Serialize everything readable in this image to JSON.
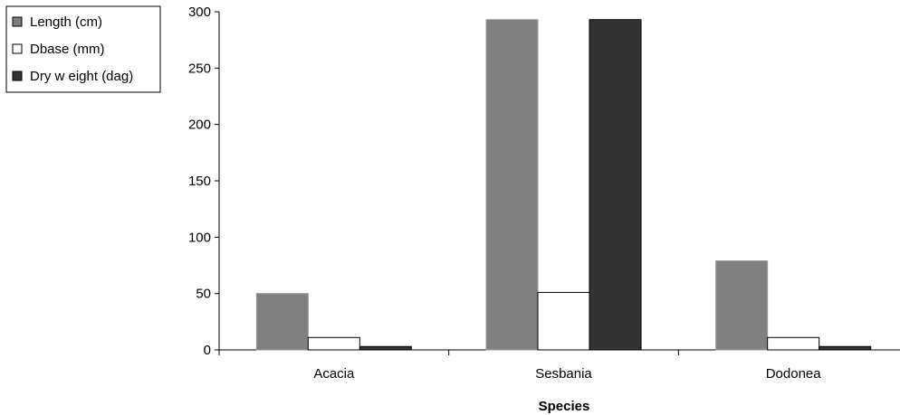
{
  "chart_data": {
    "type": "bar",
    "title": "",
    "xlabel": "Species",
    "ylabel": "",
    "categories": [
      "Acacia",
      "Sesbania",
      "Dodonea"
    ],
    "series": [
      {
        "name": "Length (cm)",
        "color": "#808080",
        "values": [
          50,
          293,
          79
        ]
      },
      {
        "name": "Dbase (mm)",
        "color": "#ffffff",
        "values": [
          11,
          51,
          11
        ]
      },
      {
        "name": "Dry w eight (dag)",
        "color": "#333333",
        "values": [
          3,
          293,
          3
        ]
      }
    ],
    "ylim": [
      0,
      300
    ],
    "yticks": [
      "0",
      "50",
      "100",
      "150",
      "200",
      "250",
      "300"
    ],
    "grid": false,
    "legend_position": "top-left"
  }
}
